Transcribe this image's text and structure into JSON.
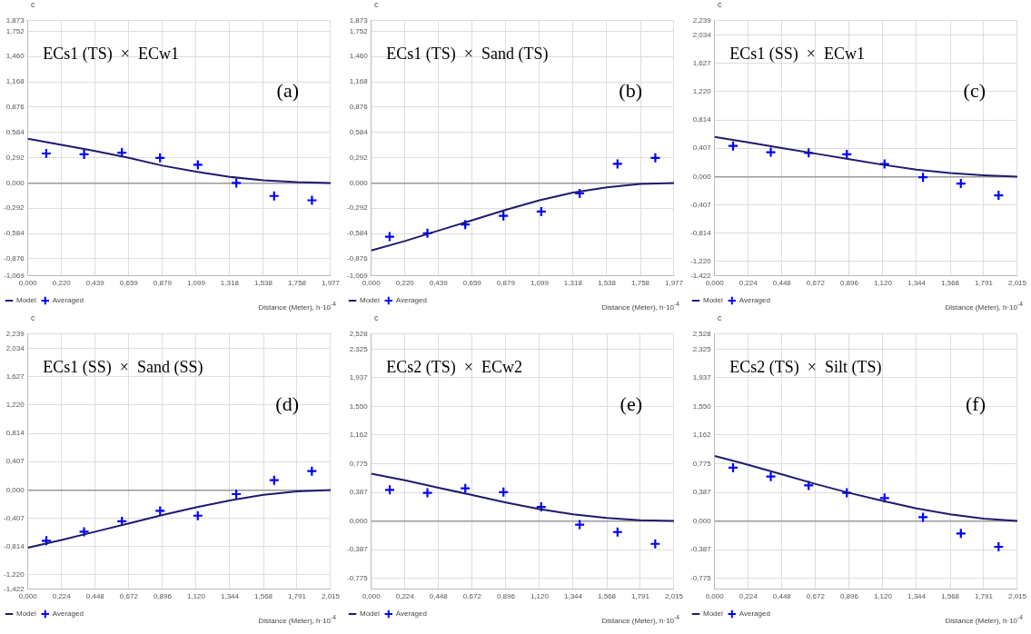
{
  "chart_data": [
    {
      "type": "line",
      "ylabel": "c",
      "xlabel": "Distance (Meter), h·10$^{-4}$",
      "annotations": [
        "ECs1 (TS)  ×  ECw1",
        "(a)"
      ],
      "legend": "bottom left",
      "grid": true,
      "xlim": [
        0,
        1.977
      ],
      "xticks": [
        {
          "value": 0,
          "label": "0,000"
        },
        {
          "value": 0.22,
          "label": "0,220"
        },
        {
          "value": 0.439,
          "label": "0,439"
        },
        {
          "value": 0.659,
          "label": "0,659"
        },
        {
          "value": 0.879,
          "label": "0,879"
        },
        {
          "value": 1.099,
          "label": "1,099"
        },
        {
          "value": 1.318,
          "label": "1,318"
        },
        {
          "value": 1.538,
          "label": "1,538"
        },
        {
          "value": 1.758,
          "label": "1,758"
        },
        {
          "value": 1.977,
          "label": "1,977"
        }
      ],
      "ylim": [
        -1.069,
        1.873
      ],
      "yticks": [
        {
          "value": -1.069,
          "label": "-1,069"
        },
        {
          "value": -0.876,
          "label": "-0,876"
        },
        {
          "value": -0.584,
          "label": "-0,584"
        },
        {
          "value": -0.292,
          "label": "-0,292"
        },
        {
          "value": 0,
          "label": "0,000"
        },
        {
          "value": 0.292,
          "label": "0,292"
        },
        {
          "value": 0.584,
          "label": "0,584"
        },
        {
          "value": 0.876,
          "label": "0,876"
        },
        {
          "value": 1.168,
          "label": "1,168"
        },
        {
          "value": 1.46,
          "label": "1,460"
        },
        {
          "value": 1.752,
          "label": "1,752"
        },
        {
          "value": 1.873,
          "label": "1,873"
        }
      ],
      "series": [
        {
          "name": "Model",
          "type": "line",
          "marker": "none",
          "color": "#1f1a6e",
          "x": [
            0,
            0.22,
            0.439,
            0.659,
            0.879,
            1.099,
            1.318,
            1.538,
            1.758,
            1.977
          ],
          "values": [
            0.51,
            0.44,
            0.37,
            0.29,
            0.2,
            0.13,
            0.07,
            0.03,
            0.01,
            0
          ]
        },
        {
          "name": "Averaged",
          "type": "scatter",
          "marker": "cross",
          "color": "#0000ff",
          "x": [
            0.12,
            0.367,
            0.614,
            0.863,
            1.11,
            1.361,
            1.608,
            1.855
          ],
          "values": [
            0.34,
            0.33,
            0.35,
            0.29,
            0.21,
            0.0,
            -0.15,
            -0.2
          ]
        }
      ]
    },
    {
      "type": "line",
      "ylabel": "c",
      "xlabel": "Distance (Meter), h·10$^{-4}$",
      "annotations": [
        "ECs1 (TS)  ×  Sand (TS)",
        "(b)"
      ],
      "legend": "bottom left",
      "grid": true,
      "xlim": [
        0,
        1.977
      ],
      "xticks": [
        {
          "value": 0,
          "label": "0,000"
        },
        {
          "value": 0.22,
          "label": "0,220"
        },
        {
          "value": 0.439,
          "label": "0,439"
        },
        {
          "value": 0.659,
          "label": "0,659"
        },
        {
          "value": 0.879,
          "label": "0,879"
        },
        {
          "value": 1.099,
          "label": "1,099"
        },
        {
          "value": 1.318,
          "label": "1,318"
        },
        {
          "value": 1.538,
          "label": "1,538"
        },
        {
          "value": 1.758,
          "label": "1,758"
        },
        {
          "value": 1.977,
          "label": "1,977"
        }
      ],
      "ylim": [
        -1.069,
        1.873
      ],
      "yticks": [
        {
          "value": -1.069,
          "label": "-1,069"
        },
        {
          "value": -0.876,
          "label": "-0,876"
        },
        {
          "value": -0.584,
          "label": "-0,584"
        },
        {
          "value": -0.292,
          "label": "-0,292"
        },
        {
          "value": 0,
          "label": "0,000"
        },
        {
          "value": 0.292,
          "label": "0,292"
        },
        {
          "value": 0.584,
          "label": "0,584"
        },
        {
          "value": 0.876,
          "label": "0,876"
        },
        {
          "value": 1.168,
          "label": "1,168"
        },
        {
          "value": 1.46,
          "label": "1,460"
        },
        {
          "value": 1.752,
          "label": "1,752"
        },
        {
          "value": 1.873,
          "label": "1,873"
        }
      ],
      "series": [
        {
          "name": "Model",
          "type": "line",
          "marker": "none",
          "color": "#1f1a6e",
          "x": [
            0,
            0.22,
            0.439,
            0.659,
            0.879,
            1.099,
            1.318,
            1.538,
            1.758,
            1.977
          ],
          "values": [
            -0.78,
            -0.67,
            -0.55,
            -0.43,
            -0.31,
            -0.2,
            -0.11,
            -0.05,
            -0.01,
            0
          ]
        },
        {
          "name": "Averaged",
          "type": "scatter",
          "marker": "cross",
          "color": "#0000ff",
          "x": [
            0.12,
            0.367,
            0.614,
            0.863,
            1.11,
            1.361,
            1.608,
            1.855
          ],
          "values": [
            -0.62,
            -0.58,
            -0.48,
            -0.38,
            -0.33,
            -0.12,
            0.22,
            0.29
          ]
        }
      ]
    },
    {
      "type": "line",
      "ylabel": "c",
      "xlabel": "Distance (Meter), h·10$^{-4}$",
      "annotations": [
        "ECs1 (SS)  ×  ECw1",
        "(c)"
      ],
      "legend": "bottom left",
      "grid": true,
      "xlim": [
        0,
        2.015
      ],
      "xticks": [
        {
          "value": 0,
          "label": "0,000"
        },
        {
          "value": 0.224,
          "label": "0,224"
        },
        {
          "value": 0.448,
          "label": "0,448"
        },
        {
          "value": 0.672,
          "label": "0,672"
        },
        {
          "value": 0.896,
          "label": "0,896"
        },
        {
          "value": 1.12,
          "label": "1,120"
        },
        {
          "value": 1.344,
          "label": "1,344"
        },
        {
          "value": 1.568,
          "label": "1,568"
        },
        {
          "value": 1.791,
          "label": "1,791"
        },
        {
          "value": 2.015,
          "label": "2,015"
        }
      ],
      "ylim": [
        -1.422,
        2.239
      ],
      "yticks": [
        {
          "value": -1.422,
          "label": "-1,422"
        },
        {
          "value": -1.22,
          "label": "-1,220"
        },
        {
          "value": -0.814,
          "label": "-0,814"
        },
        {
          "value": -0.407,
          "label": "-0,407"
        },
        {
          "value": 0,
          "label": "0,000"
        },
        {
          "value": 0.407,
          "label": "0,407"
        },
        {
          "value": 0.814,
          "label": "0,814"
        },
        {
          "value": 1.22,
          "label": "1,220"
        },
        {
          "value": 1.627,
          "label": "1,627"
        },
        {
          "value": 2.034,
          "label": "2,034"
        },
        {
          "value": 2.239,
          "label": "2,239"
        }
      ],
      "series": [
        {
          "name": "Model",
          "type": "line",
          "marker": "none",
          "color": "#1f1a6e",
          "x": [
            0,
            0.224,
            0.448,
            0.672,
            0.896,
            1.12,
            1.344,
            1.568,
            1.791,
            2.015
          ],
          "values": [
            0.57,
            0.49,
            0.41,
            0.33,
            0.25,
            0.17,
            0.1,
            0.05,
            0.02,
            0
          ]
        },
        {
          "name": "Averaged",
          "type": "scatter",
          "marker": "cross",
          "color": "#0000ff",
          "x": [
            0.123,
            0.374,
            0.626,
            0.88,
            1.131,
            1.387,
            1.639,
            1.89
          ],
          "values": [
            0.44,
            0.35,
            0.34,
            0.32,
            0.18,
            -0.01,
            -0.1,
            -0.27
          ]
        }
      ]
    },
    {
      "type": "line",
      "ylabel": "c",
      "xlabel": "Distance (Meter), h·10$^{-4}$",
      "annotations": [
        "ECs1 (SS)  ×  Sand (SS)",
        "(d)"
      ],
      "legend": "bottom left",
      "grid": true,
      "xlim": [
        0,
        2.015
      ],
      "xticks": [
        {
          "value": 0,
          "label": "0,000"
        },
        {
          "value": 0.224,
          "label": "0,224"
        },
        {
          "value": 0.448,
          "label": "0,448"
        },
        {
          "value": 0.672,
          "label": "0,672"
        },
        {
          "value": 0.896,
          "label": "0,896"
        },
        {
          "value": 1.12,
          "label": "1,120"
        },
        {
          "value": 1.344,
          "label": "1,344"
        },
        {
          "value": 1.568,
          "label": "1,568"
        },
        {
          "value": 1.791,
          "label": "1,791"
        },
        {
          "value": 2.015,
          "label": "2,015"
        }
      ],
      "ylim": [
        -1.422,
        2.239
      ],
      "yticks": [
        {
          "value": -1.422,
          "label": "-1,422"
        },
        {
          "value": -1.22,
          "label": "-1,220"
        },
        {
          "value": -0.814,
          "label": "-0,814"
        },
        {
          "value": -0.407,
          "label": "-0,407"
        },
        {
          "value": 0,
          "label": "0,000"
        },
        {
          "value": 0.407,
          "label": "0,407"
        },
        {
          "value": 0.814,
          "label": "0,814"
        },
        {
          "value": 1.22,
          "label": "1,220"
        },
        {
          "value": 1.627,
          "label": "1,627"
        },
        {
          "value": 2.034,
          "label": "2,034"
        },
        {
          "value": 2.239,
          "label": "2,239"
        }
      ],
      "series": [
        {
          "name": "Model",
          "type": "line",
          "marker": "none",
          "color": "#1f1a6e",
          "x": [
            0,
            0.224,
            0.448,
            0.672,
            0.896,
            1.12,
            1.344,
            1.568,
            1.791,
            2.015
          ],
          "values": [
            -0.83,
            -0.72,
            -0.6,
            -0.48,
            -0.36,
            -0.25,
            -0.15,
            -0.07,
            -0.02,
            0
          ]
        },
        {
          "name": "Averaged",
          "type": "scatter",
          "marker": "cross",
          "color": "#0000ff",
          "x": [
            0.123,
            0.374,
            0.626,
            0.88,
            1.131,
            1.387,
            1.639,
            1.89
          ],
          "values": [
            -0.73,
            -0.6,
            -0.45,
            -0.3,
            -0.37,
            -0.06,
            0.14,
            0.27
          ]
        }
      ]
    },
    {
      "type": "line",
      "ylabel": "c",
      "xlabel": "Distance (Meter), h·10$^{-4}$",
      "annotations": [
        "ECs2 (TS)  ×  ECw2",
        "(e)"
      ],
      "legend": "bottom left",
      "grid": true,
      "xlim": [
        0,
        2.015
      ],
      "xticks": [
        {
          "value": 0,
          "label": "0,000"
        },
        {
          "value": 0.224,
          "label": "0,224"
        },
        {
          "value": 0.448,
          "label": "0,448"
        },
        {
          "value": 0.672,
          "label": "0,672"
        },
        {
          "value": 0.896,
          "label": "0,896"
        },
        {
          "value": 1.12,
          "label": "1,120"
        },
        {
          "value": 1.344,
          "label": "1,344"
        },
        {
          "value": 1.568,
          "label": "1,568"
        },
        {
          "value": 1.791,
          "label": "1,791"
        },
        {
          "value": 2.015,
          "label": "2,015"
        }
      ],
      "ylim": [
        -0.92,
        2.528
      ],
      "yticks": [
        {
          "value": -0.775,
          "label": "-0,775"
        },
        {
          "value": -0.387,
          "label": "-0,387"
        },
        {
          "value": 0,
          "label": "0,000"
        },
        {
          "value": 0.387,
          "label": "0,387"
        },
        {
          "value": 0.775,
          "label": "0,775"
        },
        {
          "value": 1.162,
          "label": "1,162"
        },
        {
          "value": 1.55,
          "label": "1,550"
        },
        {
          "value": 1.937,
          "label": "1,937"
        },
        {
          "value": 2.325,
          "label": "2,325"
        },
        {
          "value": 2.528,
          "label": "2,528"
        }
      ],
      "series": [
        {
          "name": "Model",
          "type": "line",
          "marker": "none",
          "color": "#1f1a6e",
          "x": [
            0,
            0.224,
            0.448,
            0.672,
            0.896,
            1.12,
            1.344,
            1.568,
            1.791,
            2.015
          ],
          "values": [
            0.64,
            0.55,
            0.45,
            0.35,
            0.25,
            0.16,
            0.09,
            0.04,
            0.01,
            0
          ]
        },
        {
          "name": "Averaged",
          "type": "scatter",
          "marker": "cross",
          "color": "#0000ff",
          "x": [
            0.123,
            0.374,
            0.626,
            0.88,
            1.131,
            1.387,
            1.639,
            1.89
          ],
          "values": [
            0.42,
            0.38,
            0.44,
            0.39,
            0.19,
            -0.05,
            -0.15,
            -0.31
          ]
        }
      ]
    },
    {
      "type": "line",
      "ylabel": "c",
      "xlabel": "Distance (Meter), h·10$^{-4}$",
      "annotations": [
        "ECs2 (TS)  ×  Silt (TS)",
        "(f)"
      ],
      "legend": "bottom left",
      "grid": true,
      "xlim": [
        0,
        2.015
      ],
      "xticks": [
        {
          "value": 0,
          "label": "0,000"
        },
        {
          "value": 0.224,
          "label": "0,224"
        },
        {
          "value": 0.448,
          "label": "0,448"
        },
        {
          "value": 0.672,
          "label": "0,672"
        },
        {
          "value": 0.896,
          "label": "0,896"
        },
        {
          "value": 1.12,
          "label": "1,120"
        },
        {
          "value": 1.344,
          "label": "1,344"
        },
        {
          "value": 1.568,
          "label": "1,568"
        },
        {
          "value": 1.791,
          "label": "1,791"
        },
        {
          "value": 2.015,
          "label": "2,015"
        }
      ],
      "ylim": [
        -0.92,
        2.528
      ],
      "yticks": [
        {
          "value": -0.775,
          "label": "-0,775"
        },
        {
          "value": -0.387,
          "label": "-0,387"
        },
        {
          "value": 0,
          "label": "0,000"
        },
        {
          "value": 0.387,
          "label": "0,387"
        },
        {
          "value": 0.775,
          "label": "0,775"
        },
        {
          "value": 1.162,
          "label": "1,162"
        },
        {
          "value": 1.55,
          "label": "1,550"
        },
        {
          "value": 1.937,
          "label": "1,937"
        },
        {
          "value": 2.325,
          "label": "2,325"
        },
        {
          "value": 2.528,
          "label": "2,528"
        }
      ],
      "series": [
        {
          "name": "Model",
          "type": "line",
          "marker": "none",
          "color": "#1f1a6e",
          "x": [
            0,
            0.224,
            0.448,
            0.672,
            0.896,
            1.12,
            1.344,
            1.568,
            1.791,
            2.015
          ],
          "values": [
            0.88,
            0.76,
            0.63,
            0.5,
            0.38,
            0.27,
            0.17,
            0.09,
            0.03,
            0
          ]
        },
        {
          "name": "Averaged",
          "type": "scatter",
          "marker": "cross",
          "color": "#0000ff",
          "x": [
            0.123,
            0.374,
            0.626,
            0.88,
            1.131,
            1.387,
            1.639,
            1.89
          ],
          "values": [
            0.72,
            0.6,
            0.48,
            0.38,
            0.31,
            0.05,
            -0.17,
            -0.35
          ]
        }
      ]
    }
  ]
}
